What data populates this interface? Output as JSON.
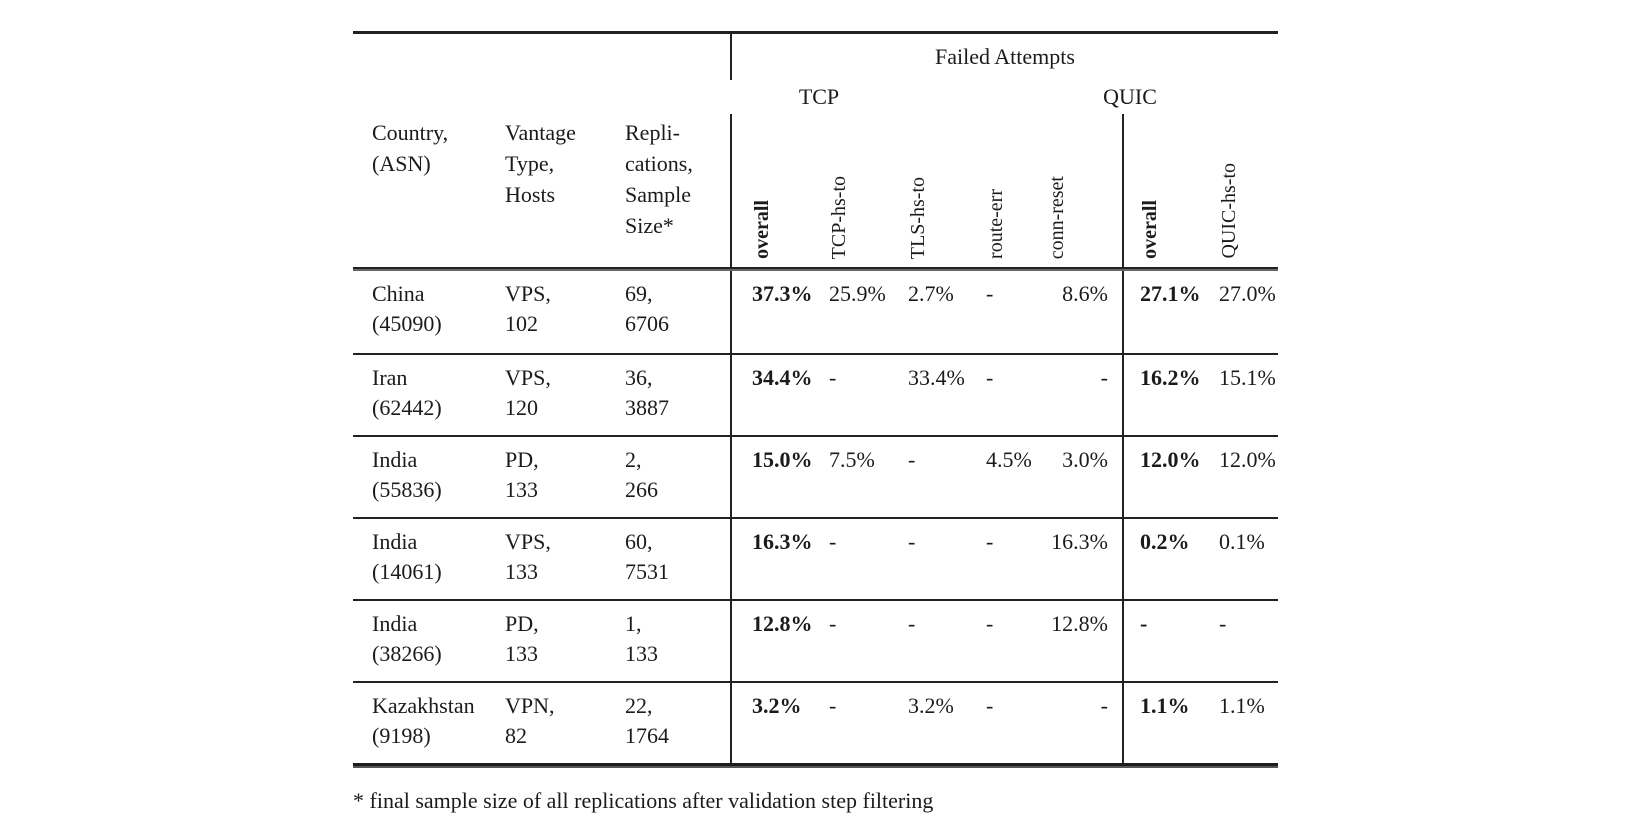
{
  "colors": {
    "background": "#ffffff",
    "text": "#1b1b1b",
    "rule": "#222222"
  },
  "table": {
    "span_header": "Failed Attempts",
    "group_tcp": "TCP",
    "group_quic": "QUIC",
    "stub_headers": {
      "country": [
        "Country,",
        "(ASN)"
      ],
      "vantage": [
        "Vantage",
        "Type,",
        "Hosts"
      ],
      "replications": [
        "Repli-",
        "cations,",
        "Sample",
        "Size*"
      ]
    },
    "rotated_headers": {
      "tcp_overall": "overall",
      "tcp_hs_to": "TCP-hs-to",
      "tls_hs_to": "TLS-hs-to",
      "route_err": "route-err",
      "conn_reset": "conn-reset",
      "quic_overall": "overall",
      "quic_hs_to": "QUIC-hs-to"
    },
    "rows": [
      {
        "country": "China",
        "asn": "(45090)",
        "vantage": "VPS,",
        "hosts": "102",
        "replications": "69,",
        "sample": "6706",
        "tcp_overall": "37.3%",
        "tcp_hs_to": "25.9%",
        "tls_hs_to": "2.7%",
        "route_err": "-",
        "conn_reset": "8.6%",
        "quic_overall": "27.1%",
        "quic_hs_to": "27.0%"
      },
      {
        "country": "Iran",
        "asn": "(62442)",
        "vantage": "VPS,",
        "hosts": "120",
        "replications": "36,",
        "sample": "3887",
        "tcp_overall": "34.4%",
        "tcp_hs_to": "-",
        "tls_hs_to": "33.4%",
        "route_err": "-",
        "conn_reset": "-",
        "quic_overall": "16.2%",
        "quic_hs_to": "15.1%"
      },
      {
        "country": "India",
        "asn": "(55836)",
        "vantage": "PD,",
        "hosts": "133",
        "replications": "2,",
        "sample": "266",
        "tcp_overall": "15.0%",
        "tcp_hs_to": "7.5%",
        "tls_hs_to": "-",
        "route_err": "4.5%",
        "conn_reset": "3.0%",
        "quic_overall": "12.0%",
        "quic_hs_to": "12.0%"
      },
      {
        "country": "India",
        "asn": "(14061)",
        "vantage": "VPS,",
        "hosts": "133",
        "replications": "60,",
        "sample": "7531",
        "tcp_overall": "16.3%",
        "tcp_hs_to": "-",
        "tls_hs_to": "-",
        "route_err": "-",
        "conn_reset": "16.3%",
        "quic_overall": "0.2%",
        "quic_hs_to": "0.1%"
      },
      {
        "country": "India",
        "asn": "(38266)",
        "vantage": "PD,",
        "hosts": "133",
        "replications": "1,",
        "sample": "133",
        "tcp_overall": "12.8%",
        "tcp_hs_to": "-",
        "tls_hs_to": "-",
        "route_err": "-",
        "conn_reset": "12.8%",
        "quic_overall": "-",
        "quic_hs_to": "-"
      },
      {
        "country": "Kazakhstan",
        "asn": "(9198)",
        "vantage": "VPN,",
        "hosts": "82",
        "replications": "22,",
        "sample": "1764",
        "tcp_overall": "3.2%",
        "tcp_hs_to": "-",
        "tls_hs_to": "3.2%",
        "route_err": "-",
        "conn_reset": "-",
        "quic_overall": "1.1%",
        "quic_hs_to": "1.1%"
      }
    ]
  },
  "footnote": "* final sample size of all replications after validation step filtering"
}
